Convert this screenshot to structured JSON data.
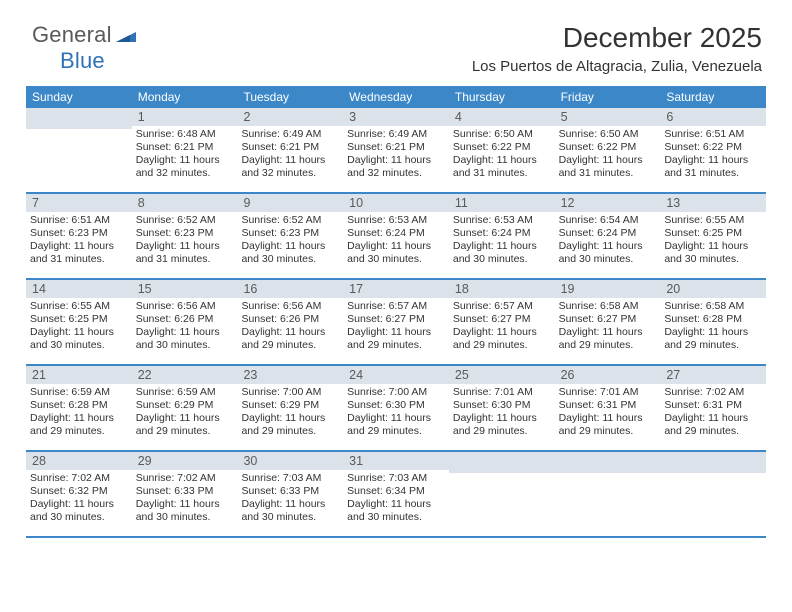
{
  "logo": {
    "text_general": "General",
    "text_blue": "Blue"
  },
  "title": "December 2025",
  "subtitle": "Los Puertos de Altagracia, Zulia, Venezuela",
  "colors": {
    "header_bg": "#3b87c8",
    "daynum_bg": "#dbe2e9",
    "text": "#333333",
    "logo_gray": "#5a5a5a",
    "logo_blue": "#2f72b6"
  },
  "days_of_week": [
    "Sunday",
    "Monday",
    "Tuesday",
    "Wednesday",
    "Thursday",
    "Friday",
    "Saturday"
  ],
  "weeks": [
    [
      {
        "num": "",
        "sunrise": "",
        "sunset": "",
        "daylight": ""
      },
      {
        "num": "1",
        "sunrise": "Sunrise: 6:48 AM",
        "sunset": "Sunset: 6:21 PM",
        "daylight": "Daylight: 11 hours and 32 minutes."
      },
      {
        "num": "2",
        "sunrise": "Sunrise: 6:49 AM",
        "sunset": "Sunset: 6:21 PM",
        "daylight": "Daylight: 11 hours and 32 minutes."
      },
      {
        "num": "3",
        "sunrise": "Sunrise: 6:49 AM",
        "sunset": "Sunset: 6:21 PM",
        "daylight": "Daylight: 11 hours and 32 minutes."
      },
      {
        "num": "4",
        "sunrise": "Sunrise: 6:50 AM",
        "sunset": "Sunset: 6:22 PM",
        "daylight": "Daylight: 11 hours and 31 minutes."
      },
      {
        "num": "5",
        "sunrise": "Sunrise: 6:50 AM",
        "sunset": "Sunset: 6:22 PM",
        "daylight": "Daylight: 11 hours and 31 minutes."
      },
      {
        "num": "6",
        "sunrise": "Sunrise: 6:51 AM",
        "sunset": "Sunset: 6:22 PM",
        "daylight": "Daylight: 11 hours and 31 minutes."
      }
    ],
    [
      {
        "num": "7",
        "sunrise": "Sunrise: 6:51 AM",
        "sunset": "Sunset: 6:23 PM",
        "daylight": "Daylight: 11 hours and 31 minutes."
      },
      {
        "num": "8",
        "sunrise": "Sunrise: 6:52 AM",
        "sunset": "Sunset: 6:23 PM",
        "daylight": "Daylight: 11 hours and 31 minutes."
      },
      {
        "num": "9",
        "sunrise": "Sunrise: 6:52 AM",
        "sunset": "Sunset: 6:23 PM",
        "daylight": "Daylight: 11 hours and 30 minutes."
      },
      {
        "num": "10",
        "sunrise": "Sunrise: 6:53 AM",
        "sunset": "Sunset: 6:24 PM",
        "daylight": "Daylight: 11 hours and 30 minutes."
      },
      {
        "num": "11",
        "sunrise": "Sunrise: 6:53 AM",
        "sunset": "Sunset: 6:24 PM",
        "daylight": "Daylight: 11 hours and 30 minutes."
      },
      {
        "num": "12",
        "sunrise": "Sunrise: 6:54 AM",
        "sunset": "Sunset: 6:24 PM",
        "daylight": "Daylight: 11 hours and 30 minutes."
      },
      {
        "num": "13",
        "sunrise": "Sunrise: 6:55 AM",
        "sunset": "Sunset: 6:25 PM",
        "daylight": "Daylight: 11 hours and 30 minutes."
      }
    ],
    [
      {
        "num": "14",
        "sunrise": "Sunrise: 6:55 AM",
        "sunset": "Sunset: 6:25 PM",
        "daylight": "Daylight: 11 hours and 30 minutes."
      },
      {
        "num": "15",
        "sunrise": "Sunrise: 6:56 AM",
        "sunset": "Sunset: 6:26 PM",
        "daylight": "Daylight: 11 hours and 30 minutes."
      },
      {
        "num": "16",
        "sunrise": "Sunrise: 6:56 AM",
        "sunset": "Sunset: 6:26 PM",
        "daylight": "Daylight: 11 hours and 29 minutes."
      },
      {
        "num": "17",
        "sunrise": "Sunrise: 6:57 AM",
        "sunset": "Sunset: 6:27 PM",
        "daylight": "Daylight: 11 hours and 29 minutes."
      },
      {
        "num": "18",
        "sunrise": "Sunrise: 6:57 AM",
        "sunset": "Sunset: 6:27 PM",
        "daylight": "Daylight: 11 hours and 29 minutes."
      },
      {
        "num": "19",
        "sunrise": "Sunrise: 6:58 AM",
        "sunset": "Sunset: 6:27 PM",
        "daylight": "Daylight: 11 hours and 29 minutes."
      },
      {
        "num": "20",
        "sunrise": "Sunrise: 6:58 AM",
        "sunset": "Sunset: 6:28 PM",
        "daylight": "Daylight: 11 hours and 29 minutes."
      }
    ],
    [
      {
        "num": "21",
        "sunrise": "Sunrise: 6:59 AM",
        "sunset": "Sunset: 6:28 PM",
        "daylight": "Daylight: 11 hours and 29 minutes."
      },
      {
        "num": "22",
        "sunrise": "Sunrise: 6:59 AM",
        "sunset": "Sunset: 6:29 PM",
        "daylight": "Daylight: 11 hours and 29 minutes."
      },
      {
        "num": "23",
        "sunrise": "Sunrise: 7:00 AM",
        "sunset": "Sunset: 6:29 PM",
        "daylight": "Daylight: 11 hours and 29 minutes."
      },
      {
        "num": "24",
        "sunrise": "Sunrise: 7:00 AM",
        "sunset": "Sunset: 6:30 PM",
        "daylight": "Daylight: 11 hours and 29 minutes."
      },
      {
        "num": "25",
        "sunrise": "Sunrise: 7:01 AM",
        "sunset": "Sunset: 6:30 PM",
        "daylight": "Daylight: 11 hours and 29 minutes."
      },
      {
        "num": "26",
        "sunrise": "Sunrise: 7:01 AM",
        "sunset": "Sunset: 6:31 PM",
        "daylight": "Daylight: 11 hours and 29 minutes."
      },
      {
        "num": "27",
        "sunrise": "Sunrise: 7:02 AM",
        "sunset": "Sunset: 6:31 PM",
        "daylight": "Daylight: 11 hours and 29 minutes."
      }
    ],
    [
      {
        "num": "28",
        "sunrise": "Sunrise: 7:02 AM",
        "sunset": "Sunset: 6:32 PM",
        "daylight": "Daylight: 11 hours and 30 minutes."
      },
      {
        "num": "29",
        "sunrise": "Sunrise: 7:02 AM",
        "sunset": "Sunset: 6:33 PM",
        "daylight": "Daylight: 11 hours and 30 minutes."
      },
      {
        "num": "30",
        "sunrise": "Sunrise: 7:03 AM",
        "sunset": "Sunset: 6:33 PM",
        "daylight": "Daylight: 11 hours and 30 minutes."
      },
      {
        "num": "31",
        "sunrise": "Sunrise: 7:03 AM",
        "sunset": "Sunset: 6:34 PM",
        "daylight": "Daylight: 11 hours and 30 minutes."
      },
      {
        "num": "",
        "sunrise": "",
        "sunset": "",
        "daylight": ""
      },
      {
        "num": "",
        "sunrise": "",
        "sunset": "",
        "daylight": ""
      },
      {
        "num": "",
        "sunrise": "",
        "sunset": "",
        "daylight": ""
      }
    ]
  ]
}
